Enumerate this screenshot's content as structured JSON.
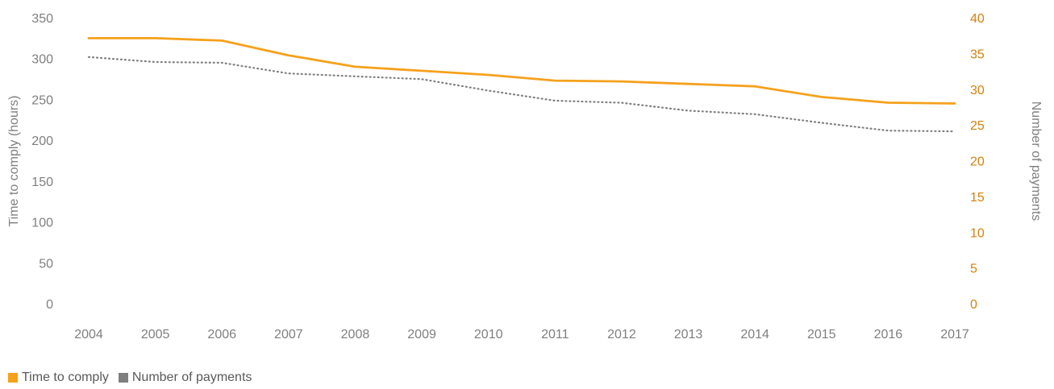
{
  "chart_data": {
    "type": "line",
    "categories": [
      "2004",
      "2005",
      "2006",
      "2007",
      "2008",
      "2009",
      "2010",
      "2011",
      "2012",
      "2013",
      "2014",
      "2015",
      "2016",
      "2017"
    ],
    "series": [
      {
        "name": "Time to comply",
        "axis": "left",
        "style": "solid",
        "color": "#f5a11c",
        "values": [
          325,
          325,
          322,
          304,
          290,
          285,
          280,
          273,
          272,
          269,
          266,
          253,
          246,
          245
        ]
      },
      {
        "name": "Number of payments",
        "axis": "right",
        "style": "dotted",
        "color": "#7f7f7f",
        "values": [
          34.5,
          33.8,
          33.7,
          32.2,
          31.8,
          31.4,
          29.8,
          28.4,
          28.1,
          27.0,
          26.5,
          25.3,
          24.2,
          24.1
        ]
      }
    ],
    "ylabel": "Time to comply (hours)",
    "y2label": "Number of payments",
    "ylim": [
      0,
      350
    ],
    "yticks": [
      "0",
      "50",
      "100",
      "150",
      "200",
      "250",
      "300",
      "350"
    ],
    "y2lim": [
      0,
      40
    ],
    "y2ticks": [
      "0",
      "5",
      "10",
      "15",
      "20",
      "25",
      "30",
      "35",
      "40"
    ],
    "right_axis_color": "#d4820e",
    "grid": false,
    "legend_position": "bottom-left"
  }
}
